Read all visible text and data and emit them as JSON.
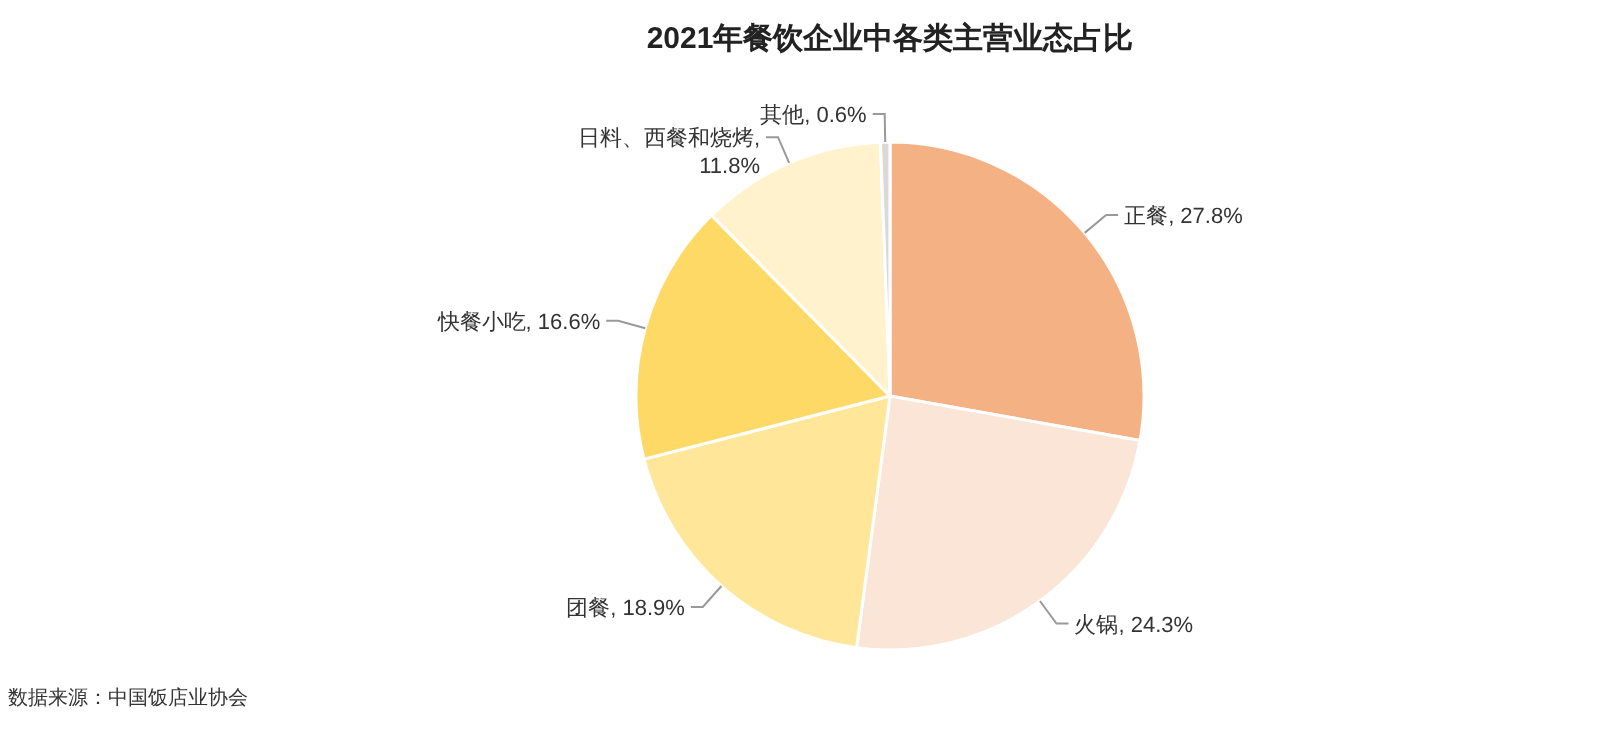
{
  "chart_data": {
    "type": "pie",
    "title": "2021年餐饮企业中各类主营业态占比",
    "categories": [
      "正餐",
      "火锅",
      "团餐",
      "快餐小吃",
      "日料、西餐和烧烤",
      "其他"
    ],
    "values": [
      27.8,
      24.3,
      18.9,
      16.6,
      11.8,
      0.6
    ],
    "value_labels": [
      ", 27.8%",
      ", 24.3%",
      ", 18.9%",
      ", 16.6%",
      ",\n11.8%",
      ", 0.6%"
    ],
    "colors": [
      "#f4b183",
      "#fbe5d6",
      "#ffe699",
      "#ffd966",
      "#fff2cc",
      "#d9d9d9"
    ],
    "annotations": [
      "数据来源：中国饭店业协会"
    ]
  }
}
